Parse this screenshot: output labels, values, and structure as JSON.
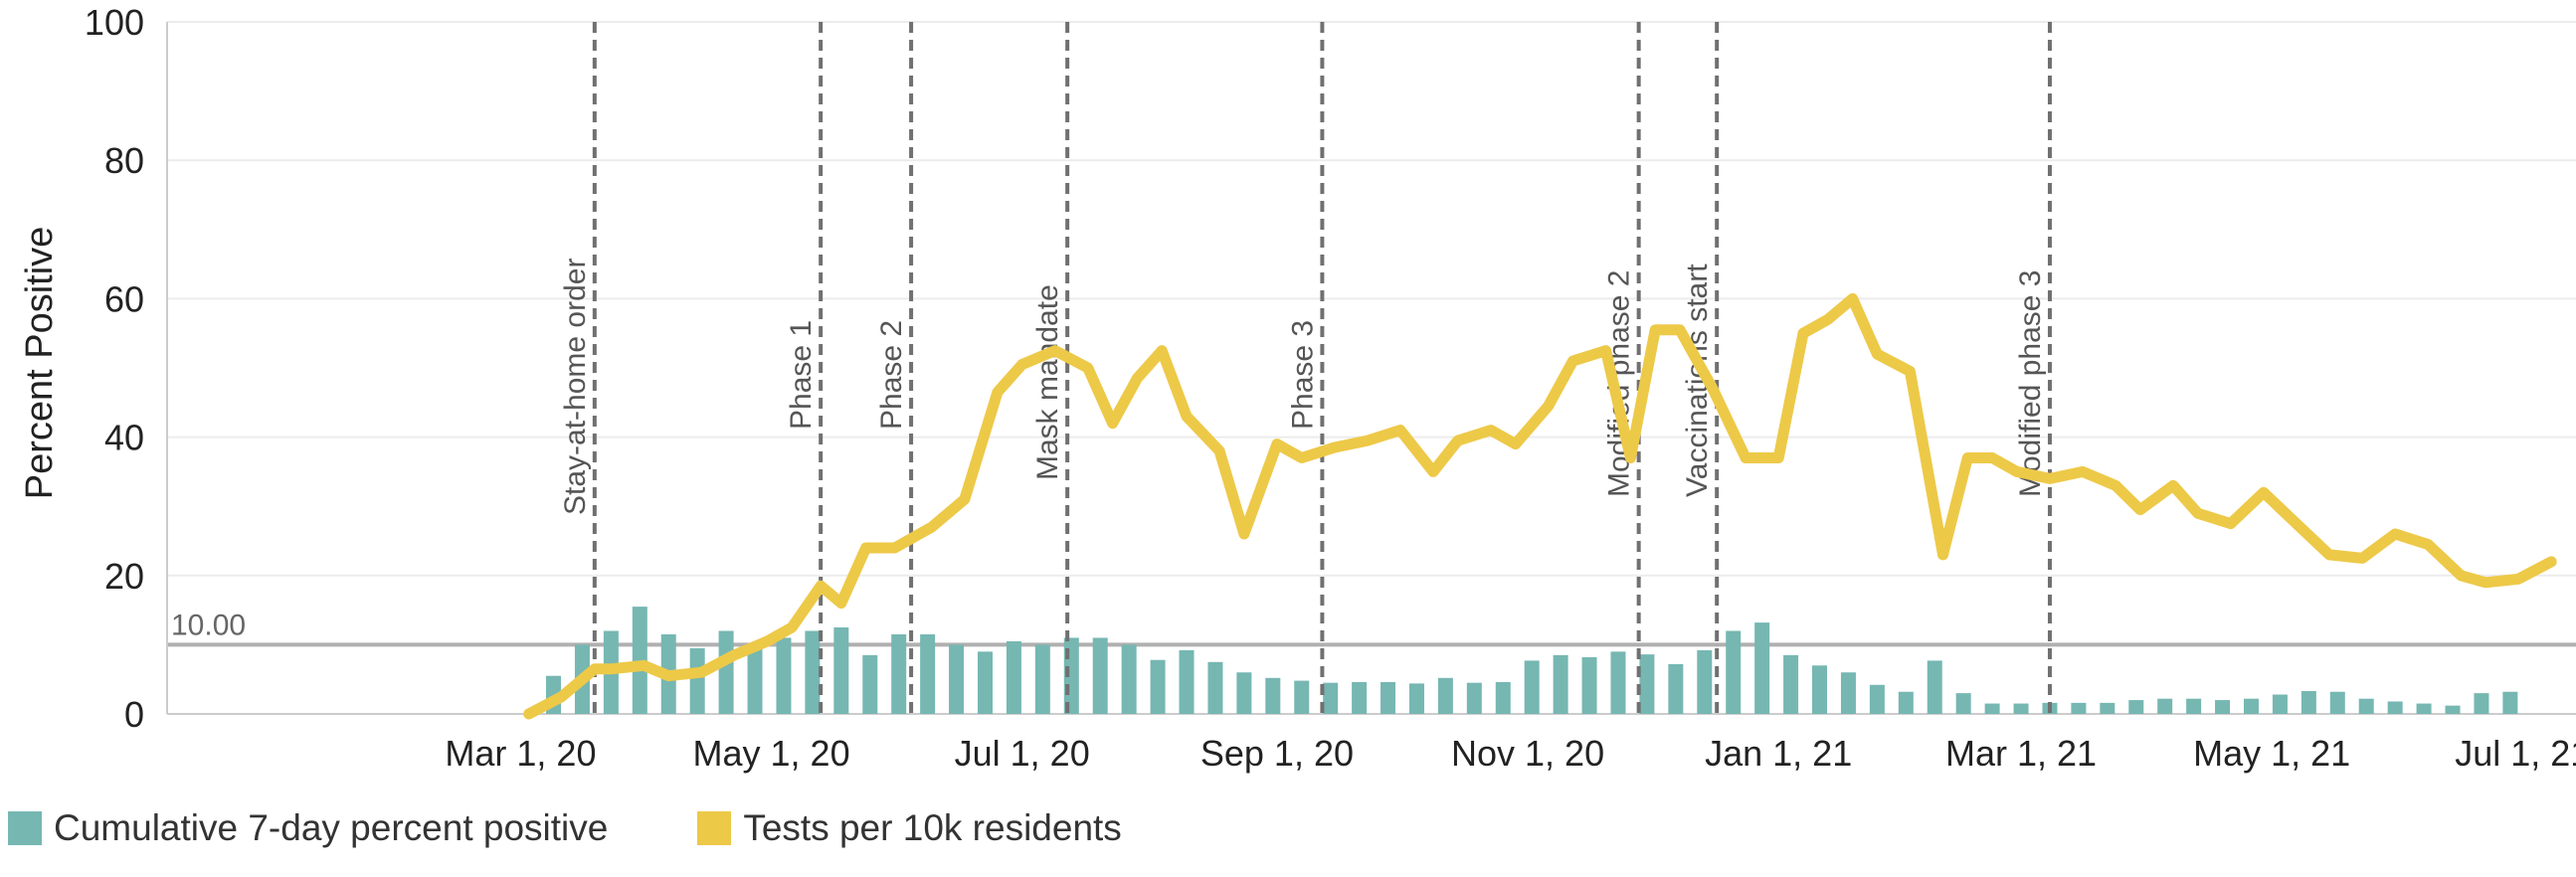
{
  "chart_data": {
    "type": "bar+line",
    "ylabel": "Percent Positive",
    "ylim": [
      0,
      100
    ],
    "yticks": [
      "0",
      "20",
      "40",
      "60",
      "80",
      "100"
    ],
    "xlim_days": [
      -86,
      500
    ],
    "xticks": [
      {
        "label": "Mar 1, 20",
        "day": 0
      },
      {
        "label": "May 1, 20",
        "day": 61
      },
      {
        "label": "Jul 1, 20",
        "day": 122
      },
      {
        "label": "Sep 1, 20",
        "day": 184
      },
      {
        "label": "Nov 1, 20",
        "day": 245
      },
      {
        "label": "Jan 1, 21",
        "day": 306
      },
      {
        "label": "Mar 1, 21",
        "day": 365
      },
      {
        "label": "May 1, 21",
        "day": 426
      },
      {
        "label": "Jul 1, 21",
        "day": 487
      }
    ],
    "reference_line": {
      "value": 10,
      "label": "10.00"
    },
    "events": [
      {
        "label": "Stay-at-home order",
        "day": 18
      },
      {
        "label": "Phase 1",
        "day": 73
      },
      {
        "label": "Phase 2",
        "day": 95
      },
      {
        "label": "Mask mandate",
        "day": 133
      },
      {
        "label": "Phase 3",
        "day": 195
      },
      {
        "label": "Modified phase 2",
        "day": 272
      },
      {
        "label": "Vaccinations start",
        "day": 291
      },
      {
        "label": "Modified phase 3",
        "day": 372
      }
    ],
    "series": [
      {
        "name": "Cumulative 7-day percent positive",
        "type": "bar",
        "color": "#76b7b2",
        "start_day": 8,
        "step_days": 7,
        "values": [
          5.5,
          10,
          12,
          15.5,
          11.5,
          9.5,
          12,
          10,
          11,
          12,
          12.5,
          8.5,
          11.5,
          11.5,
          10,
          9,
          10.5,
          10,
          11,
          11,
          10,
          7.8,
          9.2,
          7.5,
          6,
          5.2,
          4.8,
          4.5,
          4.6,
          4.6,
          4.4,
          5.2,
          4.5,
          4.6,
          7.7,
          8.5,
          8.2,
          9,
          8.6,
          7.2,
          9.2,
          12,
          13.2,
          8.5,
          7,
          6,
          4.2,
          3.2,
          7.7,
          3,
          1.5,
          1.5,
          1.6,
          1.6,
          1.6,
          2,
          2.2,
          2.2,
          2,
          2.2,
          2.8,
          3.3,
          3.2,
          2.2,
          1.8,
          1.5,
          1.2,
          3,
          3.2
        ]
      },
      {
        "name": "Tests per 10k residents",
        "type": "line",
        "color": "#edc948",
        "x_days": [
          2,
          10,
          18,
          22,
          30,
          36,
          44,
          52,
          60,
          66,
          73,
          78,
          84,
          91,
          100,
          108,
          116,
          122,
          130,
          138,
          144,
          150,
          156,
          162,
          170,
          176,
          184,
          190,
          198,
          206,
          214,
          222,
          228,
          236,
          242,
          250,
          256,
          264,
          270,
          276,
          282,
          290,
          298,
          306,
          312,
          318,
          324,
          330,
          338,
          346,
          352,
          358,
          364,
          372,
          380,
          388,
          394,
          402,
          408,
          416,
          424,
          432,
          440,
          448,
          456,
          464,
          472,
          478,
          486,
          494
        ],
        "y_values": [
          0,
          2.5,
          6.5,
          6.5,
          7,
          5.5,
          6,
          8.5,
          10.5,
          12.5,
          18.5,
          16,
          24,
          24,
          27,
          31,
          46.5,
          50.5,
          52.5,
          50,
          42,
          48.5,
          52.5,
          43,
          38,
          26,
          39,
          37,
          38.5,
          39.5,
          41,
          35,
          39.5,
          41,
          39,
          44.5,
          51,
          52.5,
          37,
          55.5,
          55.5,
          47,
          37,
          37,
          55,
          57,
          60,
          52,
          49.5,
          23,
          37,
          37,
          35,
          34,
          35,
          33,
          29.5,
          33,
          29,
          27.5,
          32,
          27.5,
          23,
          22.5,
          26,
          24.5,
          20,
          19,
          19.5,
          22
        ]
      }
    ]
  }
}
